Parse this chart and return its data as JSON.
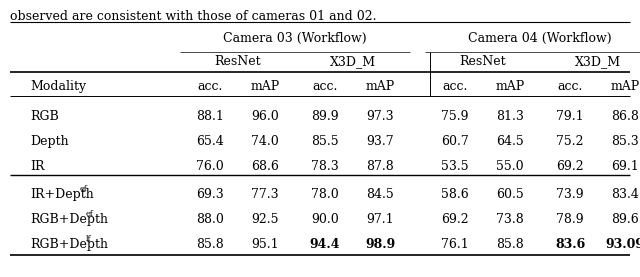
{
  "title_text": "observed are consistent with those of cameras 01 and 02.",
  "col_group_labels": [
    "Camera 03 (Workflow)",
    "Camera 04 (Workflow)"
  ],
  "sub_group_labels": [
    "ResNet",
    "X3D_M",
    "ResNet",
    "X3D_M"
  ],
  "col_headers": [
    "Modality",
    "acc.",
    "mAP",
    "acc.",
    "mAP",
    "acc.",
    "mAP",
    "acc.",
    "mAP"
  ],
  "rows": [
    {
      "modality": "RGB",
      "sup": "",
      "vals": [
        "88.1",
        "96.0",
        "89.9",
        "97.3",
        "75.9",
        "81.3",
        "79.1",
        "86.8"
      ],
      "bold": [
        false,
        false,
        false,
        false,
        false,
        false,
        false,
        false
      ]
    },
    {
      "modality": "Depth",
      "sup": "",
      "vals": [
        "65.4",
        "74.0",
        "85.5",
        "93.7",
        "60.7",
        "64.5",
        "75.2",
        "85.3"
      ],
      "bold": [
        false,
        false,
        false,
        false,
        false,
        false,
        false,
        false
      ]
    },
    {
      "modality": "IR",
      "sup": "",
      "vals": [
        "76.0",
        "68.6",
        "78.3",
        "87.8",
        "53.5",
        "55.0",
        "69.2",
        "69.1"
      ],
      "bold": [
        false,
        false,
        false,
        false,
        false,
        false,
        false,
        false
      ]
    },
    {
      "modality": "IR+Depth",
      "sup": "ef",
      "vals": [
        "69.3",
        "77.3",
        "78.0",
        "84.5",
        "58.6",
        "60.5",
        "73.9",
        "83.4"
      ],
      "bold": [
        false,
        false,
        false,
        false,
        false,
        false,
        false,
        false
      ]
    },
    {
      "modality": "RGB+Depth",
      "sup": "ef",
      "vals": [
        "88.0",
        "92.5",
        "90.0",
        "97.1",
        "69.2",
        "73.8",
        "78.9",
        "89.6"
      ],
      "bold": [
        false,
        false,
        false,
        false,
        false,
        false,
        false,
        false
      ]
    },
    {
      "modality": "RGB+Depth",
      "sup": "lf",
      "vals": [
        "85.8",
        "95.1",
        "94.4",
        "98.9",
        "76.1",
        "85.8",
        "83.6",
        "93.09"
      ],
      "bold": [
        false,
        false,
        true,
        true,
        false,
        false,
        true,
        true
      ]
    }
  ],
  "font_size": 9.0,
  "font_family": "DejaVu Serif"
}
